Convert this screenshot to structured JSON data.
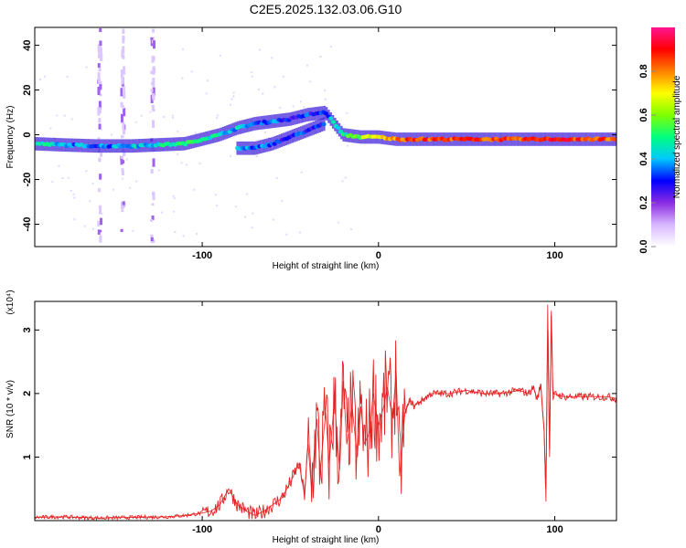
{
  "page": {
    "title": "C2E5.2025.132.03.06.G10"
  },
  "chart_data": [
    {
      "type": "heatmap",
      "title": "C2E5.2025.132.03.06.G10",
      "xlabel": "Height of straight line (km)",
      "ylabel": "Frequency (Hz)",
      "xlim": [
        -195,
        135
      ],
      "ylim": [
        -50,
        48
      ],
      "xticks": [
        -100,
        0,
        100
      ],
      "xtick_labels": [
        "-100",
        "0",
        "100"
      ],
      "yticks": [
        -40,
        -20,
        0,
        20,
        40
      ],
      "ytick_labels": [
        "-40",
        "-20",
        "0",
        "20",
        "40"
      ],
      "grid": false,
      "colorbar": {
        "label": "Normalized spectral amplitude",
        "range": [
          0,
          1
        ],
        "ticks": [
          0.0,
          0.2,
          0.4,
          0.6,
          0.8
        ],
        "tick_labels": [
          "0.0",
          "0.2",
          "0.4",
          "0.6",
          "0.8"
        ],
        "colormap": "rainbow",
        "colors": [
          "#ffffff",
          "#d8b8ff",
          "#8a2be2",
          "#0000ff",
          "#00c8ff",
          "#00ff80",
          "#80ff00",
          "#ffff00",
          "#ff8000",
          "#ff0000",
          "#ff1493"
        ]
      },
      "traces": [
        {
          "name": "",
          "x": [
            -195,
            -180,
            -160,
            -140,
            -125,
            -110,
            -100,
            -90,
            -80,
            -70,
            -60,
            -50,
            -40,
            -30,
            -20,
            -10,
            0,
            10,
            20,
            40,
            60,
            80,
            100,
            120,
            135
          ],
          "y": [
            -4,
            -4.5,
            -5,
            -5,
            -4.5,
            -4,
            -2,
            0,
            3,
            5,
            6,
            7,
            9,
            10,
            0,
            -1,
            -1,
            -2,
            -2,
            -2,
            -2,
            -2,
            -2,
            -2,
            -2
          ],
          "amplitude": [
            0.45,
            0.4,
            0.35,
            0.4,
            0.45,
            0.5,
            0.5,
            0.45,
            0.4,
            0.35,
            0.35,
            0.3,
            0.3,
            0.35,
            0.5,
            0.6,
            0.7,
            0.8,
            0.85,
            0.85,
            0.85,
            0.85,
            0.9,
            0.85,
            0.8
          ]
        },
        {
          "name": "",
          "x": [
            -80,
            -70,
            -60,
            -50,
            -40,
            -30
          ],
          "y": [
            -6,
            -6,
            -4,
            -1,
            2,
            5
          ],
          "amplitude": [
            0.35,
            0.35,
            0.35,
            0.3,
            0.3,
            0.3
          ]
        }
      ],
      "vertical_streaks_x": [
        -158,
        -145,
        -128
      ]
    },
    {
      "type": "line",
      "title": "",
      "xlabel": "Height of straight line (km)",
      "ylabel": "SNR (10 * v/v)",
      "y_multiplier": "(x10⁴)",
      "xlim": [
        -195,
        135
      ],
      "ylim": [
        0,
        3.45
      ],
      "xticks": [
        -100,
        0,
        100
      ],
      "xtick_labels": [
        "-100",
        "0",
        "100"
      ],
      "yticks": [
        1,
        2,
        3
      ],
      "ytick_labels": [
        "1",
        "2",
        "3"
      ],
      "grid": false,
      "series": [
        {
          "name": "",
          "color": "#e32222",
          "x": [
            -195,
            -180,
            -160,
            -140,
            -120,
            -110,
            -100,
            -95,
            -90,
            -85,
            -80,
            -75,
            -70,
            -65,
            -60,
            -55,
            -50,
            -45,
            -42,
            -40,
            -38,
            -35,
            -33,
            -30,
            -28,
            -25,
            -22,
            -20,
            -18,
            -15,
            -12,
            -10,
            -8,
            -5,
            -3,
            0,
            3,
            5,
            8,
            10,
            12,
            15,
            18,
            20,
            25,
            30,
            40,
            50,
            60,
            70,
            80,
            85,
            88,
            90,
            92,
            94,
            95,
            96,
            97,
            98,
            99,
            100,
            105,
            110,
            120,
            130,
            135
          ],
          "y": [
            0.05,
            0.06,
            0.04,
            0.05,
            0.06,
            0.08,
            0.12,
            0.15,
            0.25,
            0.5,
            0.25,
            0.15,
            0.08,
            0.15,
            0.25,
            0.35,
            0.6,
            0.9,
            0.4,
            1.2,
            0.5,
            1.6,
            0.8,
            1.7,
            0.9,
            1.9,
            0.8,
            2.2,
            1.2,
            1.8,
            1.0,
            1.8,
            1.2,
            1.4,
            2.0,
            1.5,
            1.8,
            2.1,
            1.6,
            2.35,
            0.7,
            1.7,
            1.9,
            1.8,
            1.9,
            2.0,
            2.0,
            2.05,
            2.0,
            2.0,
            2.05,
            2.0,
            2.1,
            1.9,
            2.15,
            1.4,
            0.3,
            3.4,
            1.0,
            3.3,
            1.9,
            2.0,
            1.95,
            1.95,
            1.95,
            1.95,
            1.92
          ]
        }
      ]
    }
  ]
}
